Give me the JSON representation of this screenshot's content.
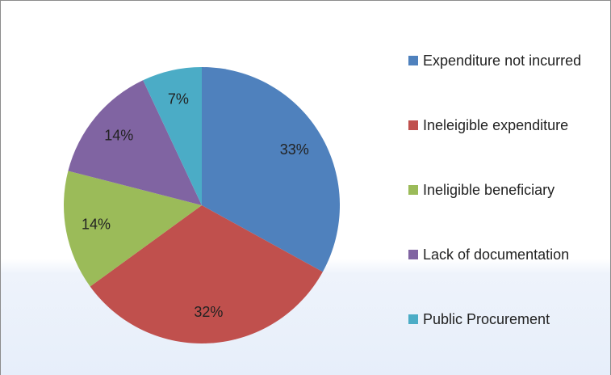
{
  "chart_data": {
    "type": "pie",
    "categories": [
      "Expenditure not incurred",
      "Ineleigible expenditure",
      "Ineligible beneficiary",
      "Lack of documentation",
      "Public Procurement"
    ],
    "values": [
      33,
      32,
      14,
      14,
      7
    ],
    "value_labels": [
      "33%",
      "32%",
      "14%",
      "14%",
      "7%"
    ],
    "colors": [
      "#4f81bd",
      "#c0504d",
      "#9bbb59",
      "#8064a2",
      "#4bacc6"
    ],
    "legend": "right"
  }
}
